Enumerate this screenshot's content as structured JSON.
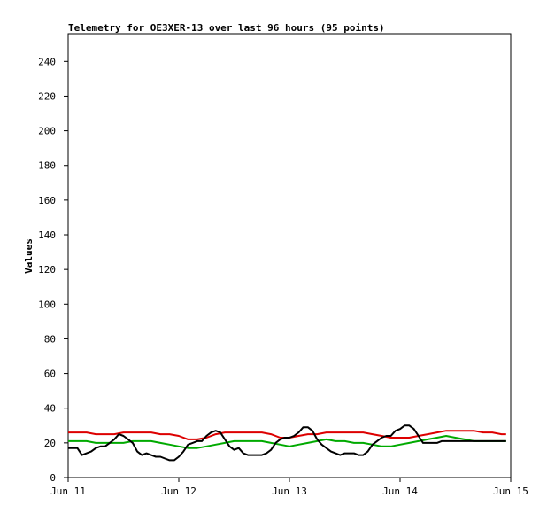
{
  "chart_data": {
    "type": "line",
    "title": "Telemetry for OE3XER-13 over last 96 hours (95 points)",
    "xlabel": "",
    "ylabel": "Values",
    "xlim": [
      0,
      96
    ],
    "ylim": [
      0,
      256
    ],
    "y_ticks": [
      0,
      20,
      40,
      60,
      80,
      100,
      120,
      140,
      160,
      180,
      200,
      220,
      240
    ],
    "x_ticks": [
      {
        "value": 0,
        "label": "Jun 11"
      },
      {
        "value": 24,
        "label": "Jun 12"
      },
      {
        "value": 48,
        "label": "Jun 13"
      },
      {
        "value": 72,
        "label": "Jun 14"
      },
      {
        "value": 96,
        "label": "Jun 15"
      }
    ],
    "grid": false,
    "legend": "none",
    "series": [
      {
        "color": "#000000",
        "x": [
          0,
          2,
          3,
          4,
          5,
          6,
          7,
          8,
          9,
          10,
          11,
          12,
          13,
          14,
          15,
          16,
          17,
          18,
          19,
          20,
          21,
          22,
          23,
          24,
          25,
          26,
          27,
          28,
          29,
          30,
          31,
          32,
          33,
          34,
          35,
          36,
          37,
          38,
          39,
          40,
          41,
          42,
          43,
          44,
          45,
          46,
          47,
          48,
          49,
          50,
          51,
          52,
          53,
          54,
          55,
          56,
          57,
          58,
          59,
          60,
          61,
          62,
          63,
          64,
          65,
          66,
          67,
          68,
          69,
          70,
          71,
          72,
          73,
          74,
          75,
          76,
          77,
          78,
          79,
          80,
          81,
          82,
          83,
          84,
          85,
          86,
          87,
          88,
          89,
          90,
          91,
          92,
          93,
          94,
          95
        ],
        "y": [
          17,
          17,
          13,
          14,
          15,
          17,
          18,
          18,
          20,
          22,
          25,
          24,
          22,
          20,
          15,
          13,
          14,
          13,
          12,
          12,
          11,
          10,
          10,
          12,
          15,
          19,
          20,
          21,
          21,
          24,
          26,
          27,
          26,
          22,
          18,
          16,
          17,
          14,
          13,
          13,
          13,
          13,
          14,
          16,
          20,
          22,
          23,
          23,
          24,
          26,
          29,
          29,
          27,
          22,
          19,
          17,
          15,
          14,
          13,
          14,
          14,
          14,
          13,
          13,
          15,
          19,
          21,
          23,
          24,
          24,
          27,
          28,
          30,
          30,
          28,
          24,
          20,
          20,
          20,
          20,
          21,
          21,
          21,
          21,
          21,
          21,
          21,
          21,
          21,
          21,
          21,
          21,
          21,
          21,
          21
        ]
      },
      {
        "color": "#dd0000",
        "x": [
          0,
          4,
          6,
          8,
          10,
          12,
          14,
          16,
          18,
          20,
          22,
          24,
          26,
          28,
          30,
          32,
          34,
          36,
          38,
          40,
          42,
          44,
          46,
          48,
          50,
          52,
          54,
          56,
          58,
          60,
          62,
          64,
          66,
          68,
          70,
          72,
          74,
          76,
          78,
          80,
          82,
          84,
          86,
          88,
          90,
          92,
          94,
          95
        ],
        "y": [
          26,
          26,
          25,
          25,
          25,
          26,
          26,
          26,
          26,
          25,
          25,
          24,
          22,
          22,
          23,
          25,
          26,
          26,
          26,
          26,
          26,
          25,
          23,
          23,
          24,
          25,
          25,
          26,
          26,
          26,
          26,
          26,
          25,
          24,
          23,
          23,
          23,
          24,
          25,
          26,
          27,
          27,
          27,
          27,
          26,
          26,
          25,
          25
        ]
      },
      {
        "color": "#00aa00",
        "x": [
          0,
          4,
          6,
          8,
          10,
          12,
          14,
          16,
          18,
          20,
          22,
          24,
          26,
          28,
          30,
          32,
          34,
          36,
          38,
          40,
          42,
          44,
          46,
          48,
          50,
          52,
          54,
          56,
          58,
          60,
          62,
          64,
          66,
          68,
          70,
          72,
          74,
          76,
          78,
          80,
          82,
          84,
          86,
          88,
          90,
          92,
          94,
          95
        ],
        "y": [
          21,
          21,
          20,
          20,
          20,
          20,
          21,
          21,
          21,
          20,
          19,
          18,
          17,
          17,
          18,
          19,
          20,
          21,
          21,
          21,
          21,
          20,
          19,
          18,
          19,
          20,
          21,
          22,
          21,
          21,
          20,
          20,
          19,
          18,
          18,
          19,
          20,
          21,
          22,
          23,
          24,
          23,
          22,
          21,
          21,
          21,
          21,
          21
        ]
      }
    ]
  }
}
